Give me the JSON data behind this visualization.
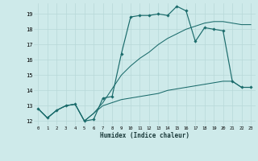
{
  "xlabel": "Humidex (Indice chaleur)",
  "bg_color": "#ceeaea",
  "grid_color": "#b8d8d8",
  "line_color": "#1a6b6b",
  "xlim": [
    -0.5,
    23.5
  ],
  "ylim": [
    11.7,
    19.7
  ],
  "yticks": [
    12,
    13,
    14,
    15,
    16,
    17,
    18,
    19
  ],
  "xticks": [
    0,
    1,
    2,
    3,
    4,
    5,
    6,
    7,
    8,
    9,
    10,
    11,
    12,
    13,
    14,
    15,
    16,
    17,
    18,
    19,
    20,
    21,
    22,
    23
  ],
  "line1_x": [
    0,
    1,
    2,
    3,
    4,
    5,
    6,
    7,
    8,
    9,
    10,
    11,
    12,
    13,
    14,
    15,
    16,
    17,
    18,
    19,
    20,
    21,
    22,
    23
  ],
  "line1_y": [
    12.8,
    12.2,
    12.7,
    13.0,
    13.1,
    12.0,
    12.1,
    13.5,
    13.6,
    16.4,
    18.8,
    18.9,
    18.9,
    19.0,
    18.9,
    19.5,
    19.2,
    17.2,
    18.1,
    18.0,
    17.9,
    14.6,
    14.2,
    14.2
  ],
  "line2_x": [
    0,
    1,
    2,
    3,
    4,
    5,
    6,
    7,
    8,
    9,
    10,
    11,
    12,
    13,
    14,
    15,
    16,
    17,
    18,
    19,
    20,
    21,
    22,
    23
  ],
  "line2_y": [
    12.8,
    12.2,
    12.7,
    13.0,
    13.1,
    12.0,
    12.5,
    13.2,
    14.1,
    15.0,
    15.6,
    16.1,
    16.5,
    17.0,
    17.4,
    17.7,
    18.0,
    18.2,
    18.4,
    18.5,
    18.5,
    18.4,
    18.3,
    18.3
  ],
  "line3_x": [
    0,
    1,
    2,
    3,
    4,
    5,
    6,
    7,
    8,
    9,
    10,
    11,
    12,
    13,
    14,
    15,
    16,
    17,
    18,
    19,
    20,
    21,
    22,
    23
  ],
  "line3_y": [
    12.8,
    12.2,
    12.7,
    13.0,
    13.1,
    12.0,
    12.5,
    13.0,
    13.2,
    13.4,
    13.5,
    13.6,
    13.7,
    13.8,
    14.0,
    14.1,
    14.2,
    14.3,
    14.4,
    14.5,
    14.6,
    14.6,
    14.2,
    14.2
  ]
}
